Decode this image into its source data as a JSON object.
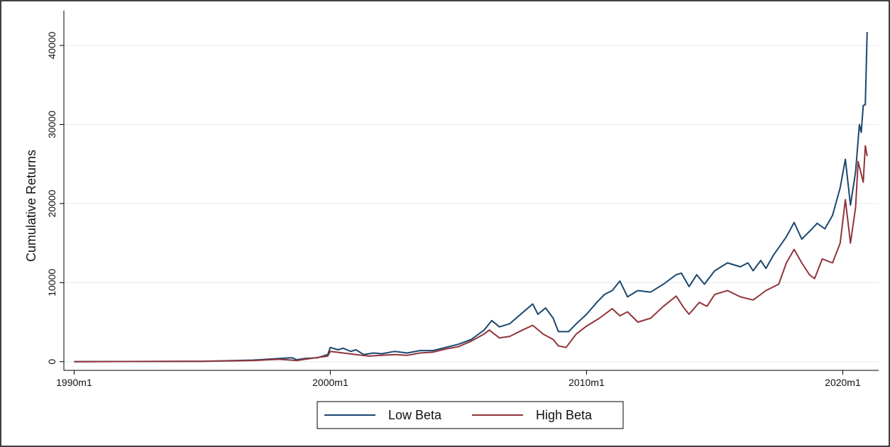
{
  "chart_data": {
    "type": "line",
    "y_label": "Cumulative Returns",
    "xlim": [
      1989.6,
      2021.4
    ],
    "xticks": [
      {
        "value": 1990,
        "label": "1990m1"
      },
      {
        "value": 2000,
        "label": "2000m1"
      },
      {
        "value": 2010,
        "label": "2010m1"
      },
      {
        "value": 2020,
        "label": "2020m1"
      }
    ],
    "ylim": [
      -1100,
      44400
    ],
    "yticks": [
      0,
      10000,
      20000,
      30000,
      40000
    ],
    "grid": true,
    "legend": "bottom",
    "series": [
      {
        "name": "Low Beta",
        "color": "#1a476f",
        "x": [
          1990,
          1995,
          1997,
          1998,
          1998.5,
          1998.7,
          1999,
          1999.5,
          1999.9,
          2000.0,
          2000.3,
          2000.5,
          2000.8,
          2001,
          2001.3,
          2001.7,
          2002,
          2002.5,
          2003,
          2003.5,
          2004,
          2004.5,
          2005,
          2005.5,
          2006,
          2006.3,
          2006.6,
          2007,
          2007.5,
          2007.9,
          2008.1,
          2008.4,
          2008.7,
          2008.9,
          2009.3,
          2009.6,
          2010,
          2010.4,
          2010.7,
          2011,
          2011.3,
          2011.6,
          2012,
          2012.5,
          2013,
          2013.5,
          2013.7,
          2014,
          2014.3,
          2014.6,
          2015,
          2015.5,
          2016,
          2016.3,
          2016.5,
          2016.8,
          2017,
          2017.3,
          2017.8,
          2018.1,
          2018.4,
          2018.8,
          2019,
          2019.3,
          2019.6,
          2019.9,
          2020.1,
          2020.3,
          2020.5,
          2020.65,
          2020.72,
          2020.8,
          2020.88,
          2020.95
        ],
        "values": [
          0,
          50,
          200,
          400,
          500,
          250,
          400,
          500,
          900,
          1800,
          1500,
          1700,
          1300,
          1500,
          900,
          1100,
          1000,
          1300,
          1100,
          1400,
          1400,
          1800,
          2200,
          2800,
          4000,
          5200,
          4400,
          4800,
          6200,
          7300,
          6000,
          6800,
          5500,
          3800,
          3800,
          4800,
          6000,
          7500,
          8500,
          9000,
          10200,
          8200,
          9000,
          8800,
          9800,
          11000,
          11200,
          9500,
          11000,
          9800,
          11500,
          12500,
          12000,
          12500,
          11500,
          12800,
          11800,
          13500,
          15800,
          17600,
          15500,
          16800,
          17500,
          16800,
          18500,
          22000,
          25600,
          19800,
          24000,
          30000,
          29000,
          32400,
          32500,
          41700
        ]
      },
      {
        "name": "High Beta",
        "color": "#90353b",
        "x": [
          1990,
          1995,
          1997,
          1998,
          1998.7,
          1999,
          1999.9,
          2000,
          2000.5,
          2001,
          2001.5,
          2002,
          2002.5,
          2003,
          2003.5,
          2004,
          2004.5,
          2005,
          2005.5,
          2006,
          2006.2,
          2006.6,
          2007,
          2007.5,
          2007.9,
          2008.3,
          2008.7,
          2008.9,
          2009.2,
          2009.6,
          2010,
          2010.5,
          2011,
          2011.3,
          2011.6,
          2012,
          2012.5,
          2013,
          2013.5,
          2013.8,
          2014,
          2014.4,
          2014.7,
          2015,
          2015.5,
          2016,
          2016.5,
          2016.8,
          2017,
          2017.5,
          2017.8,
          2018.1,
          2018.4,
          2018.7,
          2018.9,
          2019.2,
          2019.6,
          2019.9,
          2020.1,
          2020.3,
          2020.5,
          2020.6,
          2020.8,
          2020.88,
          2020.95
        ],
        "values": [
          0,
          40,
          150,
          300,
          150,
          300,
          700,
          1300,
          1100,
          900,
          700,
          800,
          900,
          800,
          1100,
          1200,
          1600,
          1900,
          2600,
          3500,
          4000,
          3000,
          3200,
          4000,
          4600,
          3500,
          2800,
          2000,
          1800,
          3500,
          4500,
          5500,
          6700,
          5800,
          6300,
          5000,
          5500,
          7000,
          8300,
          6800,
          6000,
          7500,
          7000,
          8500,
          9000,
          8200,
          7800,
          8500,
          9000,
          9800,
          12500,
          14200,
          12500,
          11000,
          10500,
          13000,
          12500,
          15000,
          20500,
          15000,
          19500,
          25300,
          22700,
          27300,
          26000
        ]
      }
    ]
  }
}
